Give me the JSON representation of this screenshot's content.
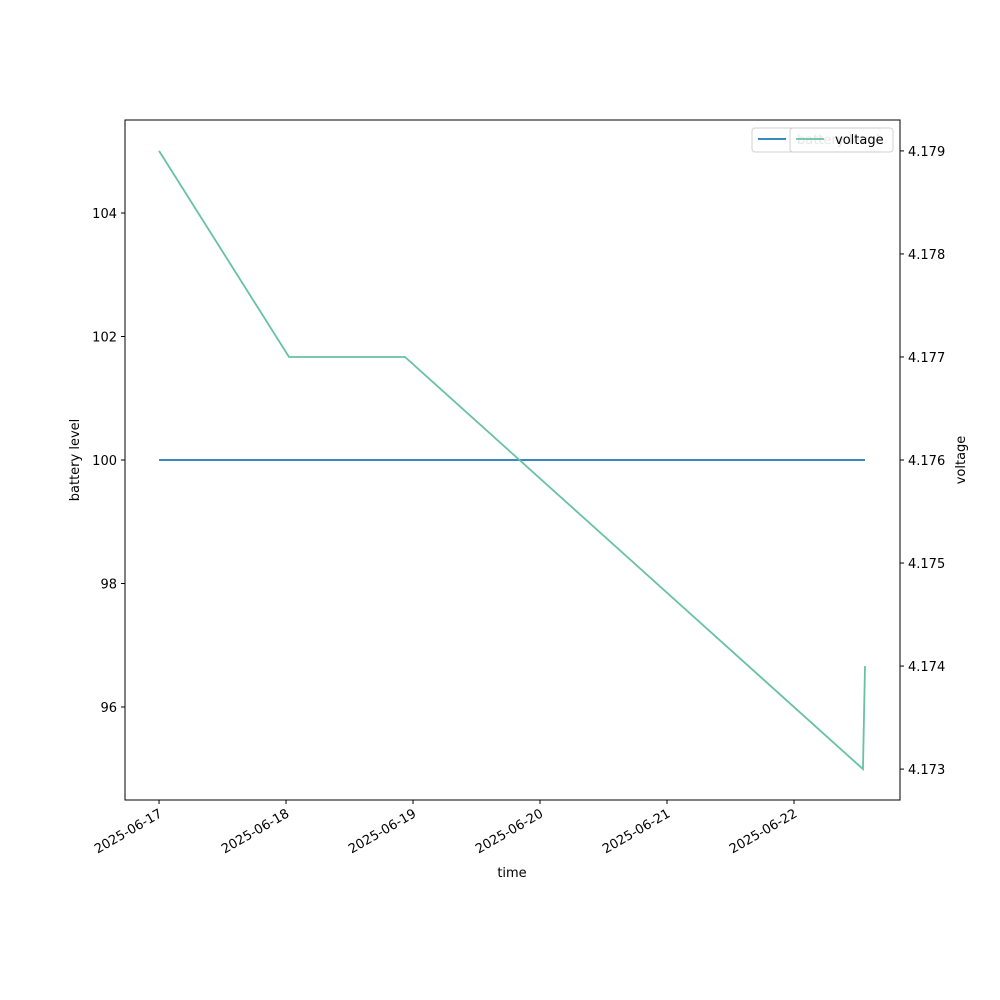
{
  "chart_data": {
    "type": "line",
    "x_label": "time",
    "y_label": "battery level",
    "y2_label": "voltage",
    "x": [
      "2025-06-17T00:00",
      "2025-06-18T00:34",
      "2025-06-18T22:29",
      "2025-06-22T13:02",
      "2025-06-22T13:25"
    ],
    "series": [
      {
        "name": "battery level",
        "color": "#1f77b4",
        "values": [
          100,
          100,
          100,
          100,
          100
        ]
      },
      {
        "name": "voltage",
        "color": "#66c2a5",
        "axis": "y2",
        "values": [
          4.179,
          4.177,
          4.177,
          4.173,
          4.174
        ]
      }
    ],
    "xlim": [
      "2025-06-16T17:34",
      "2025-06-22T20:02"
    ],
    "xticks": [
      "2025-06-17",
      "2025-06-18",
      "2025-06-19",
      "2025-06-20",
      "2025-06-21",
      "2025-06-22"
    ],
    "ylim": [
      94.494,
      105.506
    ],
    "yticks": [
      96,
      98,
      100,
      102,
      104
    ],
    "y2lim": [
      4.1727,
      4.1793
    ],
    "y2ticks": [
      4.173,
      4.174,
      4.175,
      4.176,
      4.177,
      4.178,
      4.179
    ],
    "legend": "upper right",
    "grid": false
  }
}
